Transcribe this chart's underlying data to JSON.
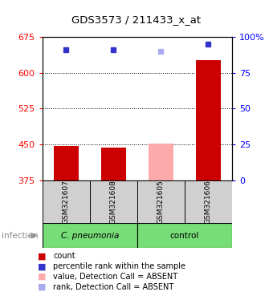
{
  "title": "GDS3573 / 211433_x_at",
  "samples": [
    "GSM321607",
    "GSM321608",
    "GSM321605",
    "GSM321606"
  ],
  "bar_bottom": 375,
  "ylim_left": [
    375,
    675
  ],
  "ylim_right": [
    0,
    100
  ],
  "yticks_left": [
    375,
    450,
    525,
    600,
    675
  ],
  "yticks_right": [
    0,
    25,
    50,
    75,
    100
  ],
  "ytick_right_labels": [
    "0",
    "25",
    "50",
    "75",
    "100%"
  ],
  "count_values": [
    447,
    443,
    452,
    627
  ],
  "count_colors": [
    "#cc0000",
    "#cc0000",
    "#ffaaaa",
    "#cc0000"
  ],
  "rank_values": [
    91,
    91,
    90,
    95
  ],
  "rank_colors": [
    "#3333cc",
    "#3333cc",
    "#aaaaee",
    "#3333cc"
  ],
  "gridline_values": [
    450,
    525,
    600
  ],
  "group_label_1": "C. pneumonia",
  "group_label_2": "control",
  "green_color": "#77dd77",
  "gray_color": "#d0d0d0",
  "legend_items": [
    {
      "label": "count",
      "color": "#cc0000"
    },
    {
      "label": "percentile rank within the sample",
      "color": "#3333cc"
    },
    {
      "label": "value, Detection Call = ABSENT",
      "color": "#ffaaaa"
    },
    {
      "label": "rank, Detection Call = ABSENT",
      "color": "#aaaaee"
    }
  ]
}
